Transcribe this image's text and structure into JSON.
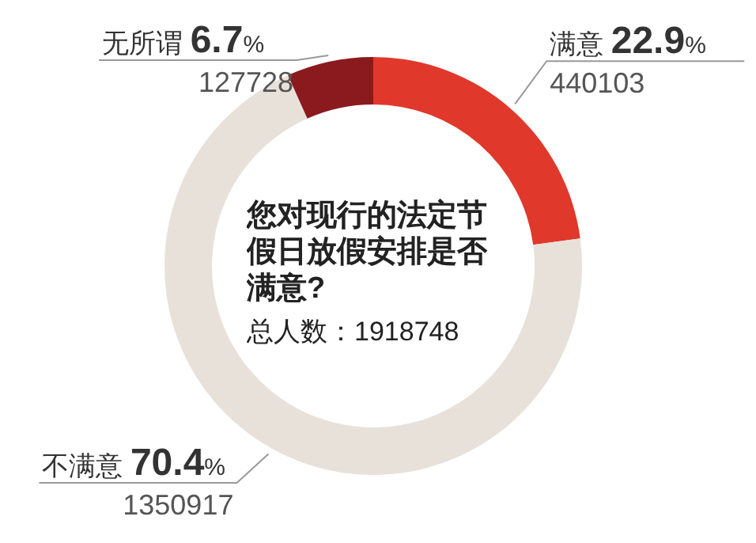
{
  "chart_data": {
    "type": "donut",
    "title": "您对现行的法定节假日放假安排是否满意?",
    "subtitle": "总人数：1918748",
    "categories": [
      "满意",
      "不满意",
      "无所谓"
    ],
    "values": [
      22.9,
      70.4,
      6.7
    ],
    "colors": [
      "#e0382b",
      "#e8e1da",
      "#8b1a1e"
    ],
    "value_labels": [
      "22.9%",
      "70.4%",
      "6.7%"
    ],
    "annotations": [
      "440103",
      "1350917",
      "127728"
    ]
  }
}
